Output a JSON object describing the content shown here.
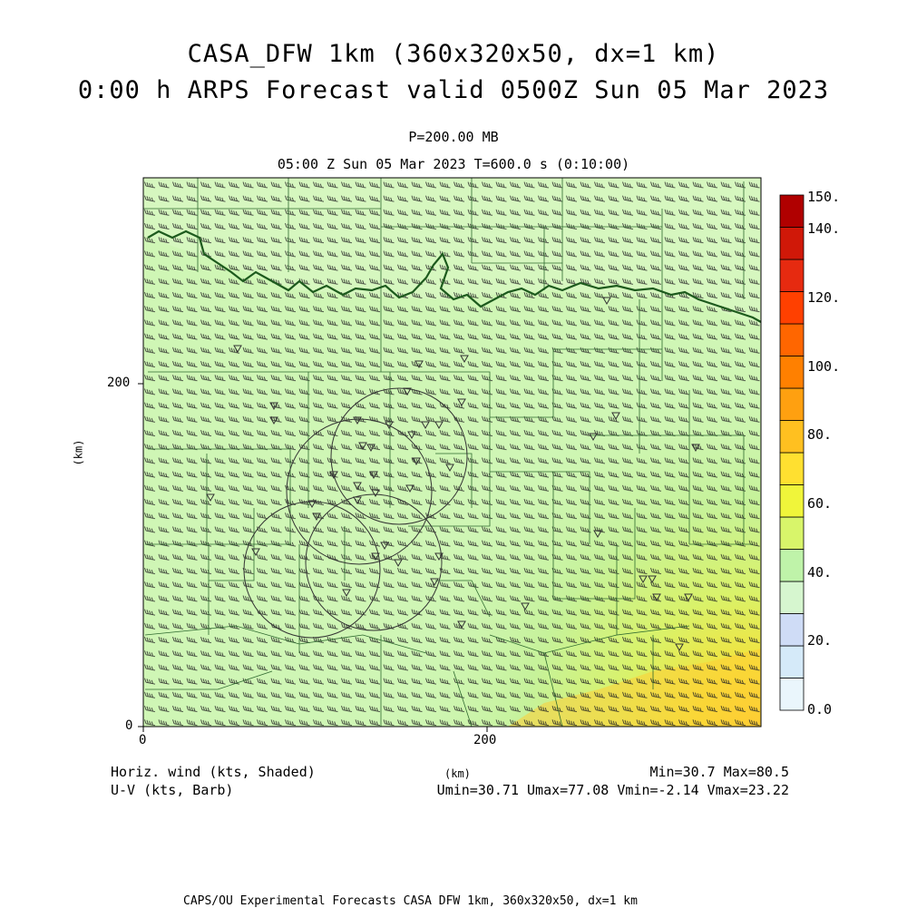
{
  "header": {
    "title_line1": "CASA_DFW 1km (360x320x50, dx=1 km)",
    "title_line2": "0:00 h ARPS Forecast valid 0500Z Sun 05 Mar 2023",
    "level": "P=200.00 MB",
    "time": "05:00 Z Sun 05 Mar 2023    T=600.0 s (0:10:00)"
  },
  "axes": {
    "y_label": "(km)",
    "x_label": "(km)",
    "x_ticks": [
      "0",
      "200"
    ],
    "y_ticks": [
      "0",
      "200"
    ]
  },
  "colorbar": {
    "labels": [
      "0.0",
      "20.",
      "40.",
      "60.",
      "80.",
      "100.",
      "120.",
      "140.",
      "150."
    ],
    "colors": [
      "#eaf6fc",
      "#d5eaf9",
      "#cfdcf6",
      "#d6f6cf",
      "#bff3a9",
      "#d8f56a",
      "#f0f53a",
      "#ffe030",
      "#ffc020",
      "#ffa010",
      "#ff8000",
      "#ff6600",
      "#ff4000",
      "#e62a10",
      "#d01808",
      "#b00000"
    ]
  },
  "legend": {
    "field": "Horiz. wind (kts, Shaded)",
    "vector": "U-V (kts, Barb)",
    "minmax": "Min=30.7 Max=80.5",
    "components": "Umin=30.71 Umax=77.08 Vmin=-2.14 Vmax=23.22"
  },
  "footer": "CAPS/OU Experimental Forecasts  CASA DFW 1km, 360x320x50, dx=1 km",
  "map": {
    "base_color": "#cff6b5",
    "gradient_colors": [
      "#bff3a0",
      "#d8f56a",
      "#f0f53a",
      "#ffd030"
    ]
  }
}
